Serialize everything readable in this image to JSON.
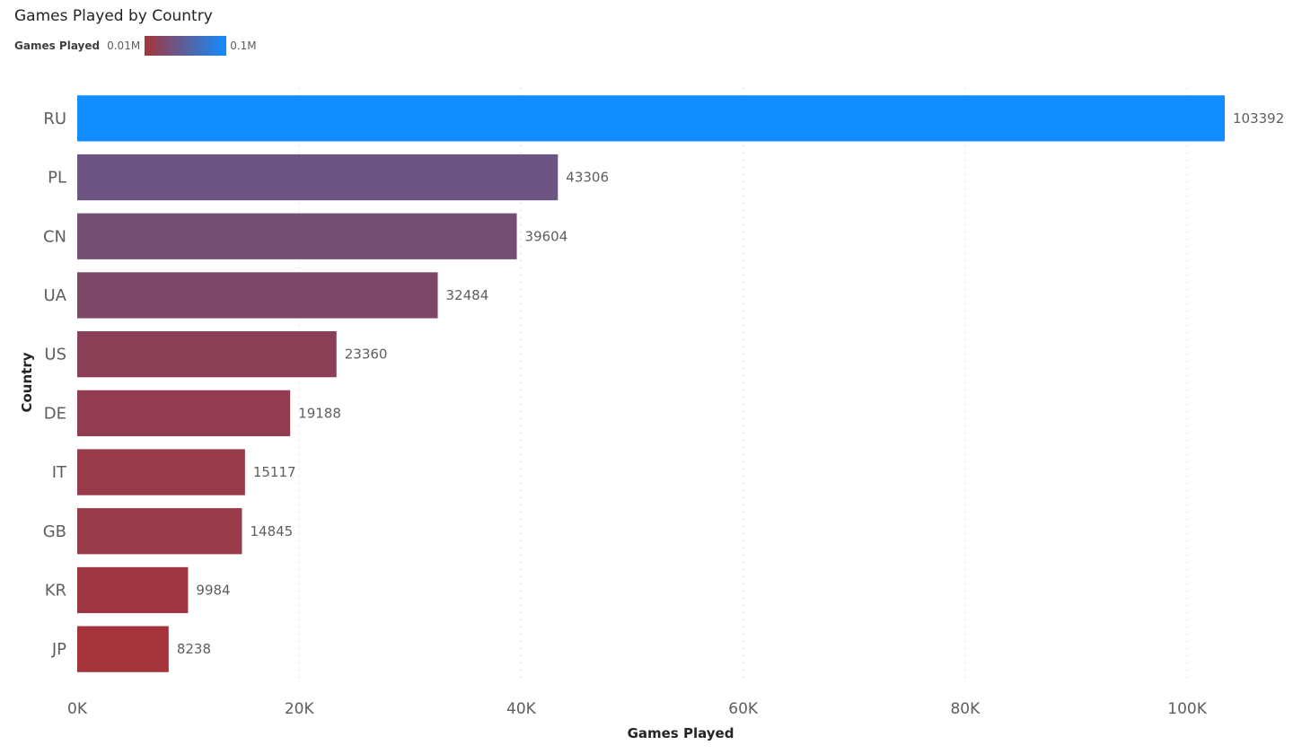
{
  "chart_data": {
    "type": "bar",
    "orientation": "horizontal",
    "title": "Games Played by Country",
    "xlabel": "Games Played",
    "ylabel": "Country",
    "categories": [
      "RU",
      "PL",
      "CN",
      "UA",
      "US",
      "DE",
      "IT",
      "GB",
      "KR",
      "JP"
    ],
    "values": [
      103392,
      43306,
      39604,
      32484,
      23360,
      19188,
      15117,
      14845,
      9984,
      8238
    ],
    "data_labels": [
      "103392",
      "43306",
      "39604",
      "32484",
      "23360",
      "19188",
      "15117",
      "14845",
      "9984",
      "8238"
    ],
    "xlim": [
      0,
      103392
    ],
    "x_ticks": [
      0,
      20000,
      40000,
      60000,
      80000,
      100000
    ],
    "x_tick_labels": [
      "0K",
      "20K",
      "40K",
      "60K",
      "80K",
      "100K"
    ],
    "grid": "vertical dotted",
    "legend": {
      "title": "Games Played",
      "min_label": "0.01M",
      "max_label": "0.1M",
      "placement": "top-left",
      "color_min": "#a4343a",
      "color_max": "#118dff"
    },
    "bar_colors": [
      "#118dff",
      "#6c5582",
      "#734f74",
      "#7c4867",
      "#8b3f56",
      "#913c50",
      "#973a49",
      "#973a49",
      "#9e3641",
      "#a4343a"
    ]
  }
}
